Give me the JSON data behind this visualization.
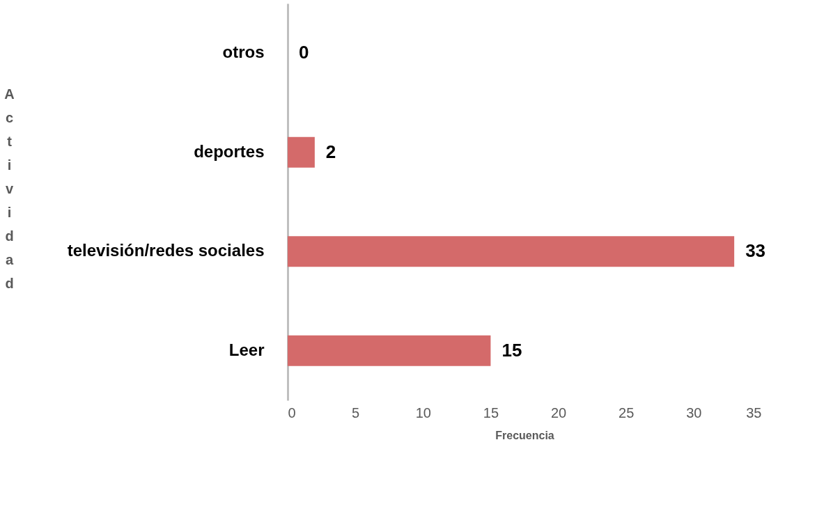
{
  "chart_data": {
    "type": "bar",
    "orientation": "horizontal",
    "xlabel": "Frecuencia",
    "ylabel": "Actividad",
    "categories": [
      "otros",
      "deportes",
      "televisión/redes sociales",
      "Leer"
    ],
    "values": [
      0,
      2,
      33,
      15
    ],
    "color": "#d46a6a",
    "xlim": [
      0,
      35
    ],
    "xticks": [
      0,
      5,
      10,
      15,
      20,
      25,
      30,
      35
    ],
    "grid": false,
    "data_labels": true
  }
}
